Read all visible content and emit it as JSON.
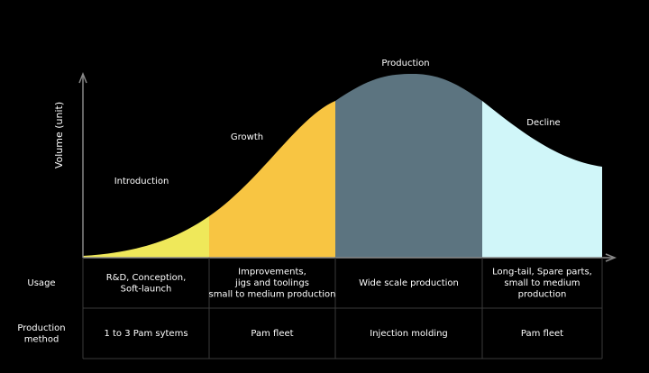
{
  "y_axis_label": "Volume (unit)",
  "phases": [
    "Introduction",
    "Growth",
    "Production",
    "Decline"
  ],
  "rows": [
    {
      "label": [
        "Usage"
      ],
      "cells": [
        [
          "R&D, Conception,",
          "Soft-launch"
        ],
        [
          "Improvements,",
          "jigs and toolings",
          "small to medium production"
        ],
        [
          "Wide scale production"
        ],
        [
          "Long-tail, Spare parts,",
          "small to medium",
          "production"
        ]
      ]
    },
    {
      "label": [
        "Production",
        "method"
      ],
      "cells": [
        [
          "1 to 3 Pam sytems"
        ],
        [
          "Pam fleet"
        ],
        [
          "Injection molding"
        ],
        [
          "Pam fleet"
        ]
      ]
    }
  ]
}
